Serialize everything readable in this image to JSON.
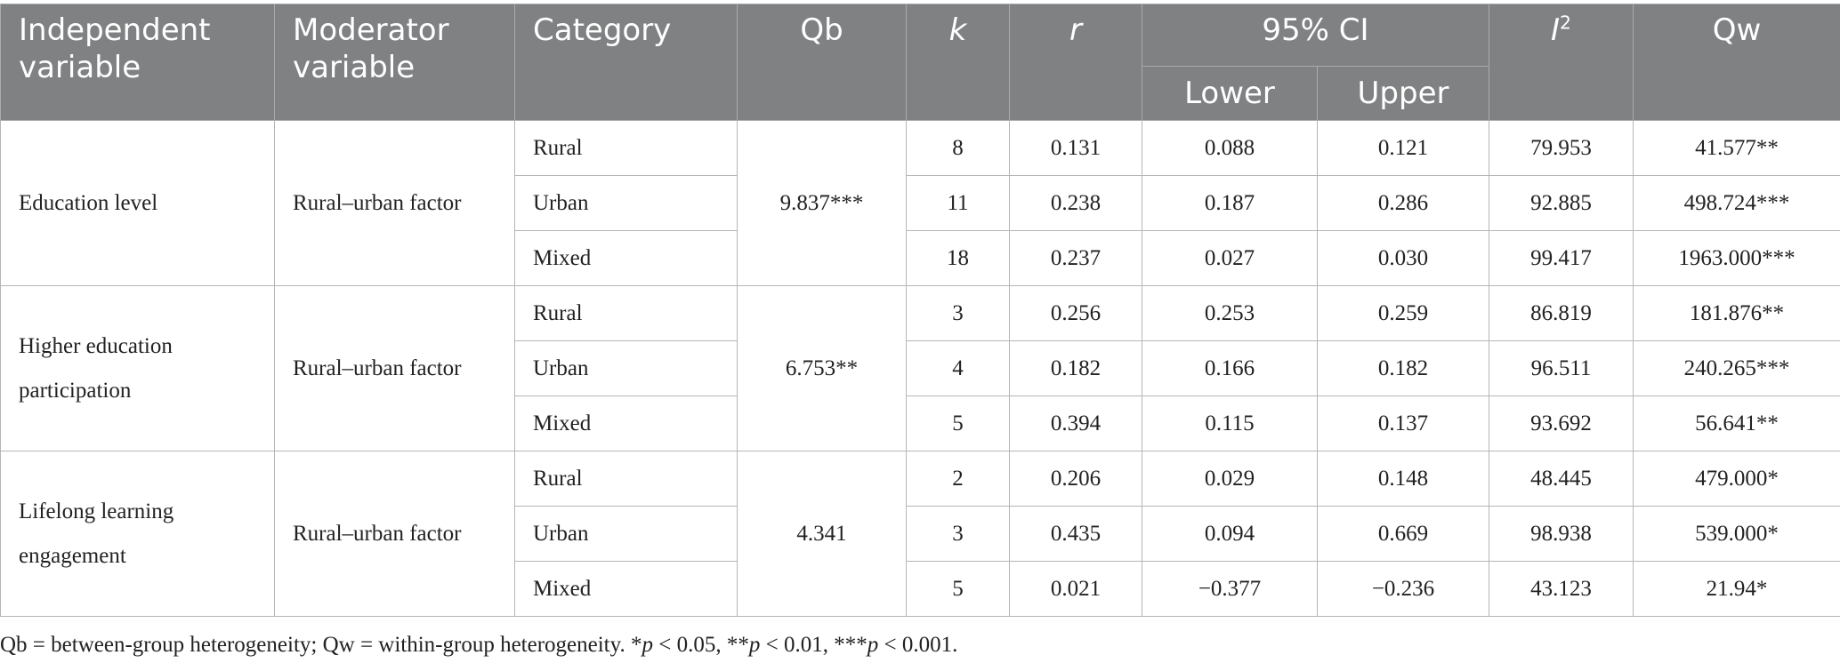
{
  "headers": {
    "independent": "Independent variable",
    "moderator": "Moderator variable",
    "category": "Category",
    "qb": "Qb",
    "k": "k",
    "r": "r",
    "ci": "95% CI",
    "lower": "Lower",
    "upper": "Upper",
    "i2_base": "I",
    "i2_sup": "2",
    "qw": "Qw"
  },
  "groups": [
    {
      "independent": "Education level",
      "moderator": "Rural–urban factor",
      "qb": "9.837***",
      "rows": [
        {
          "category": "Rural",
          "k": "8",
          "r": "0.131",
          "lower": "0.088",
          "upper": "0.121",
          "i2": "79.953",
          "qw": "41.577**"
        },
        {
          "category": "Urban",
          "k": "11",
          "r": "0.238",
          "lower": "0.187",
          "upper": "0.286",
          "i2": "92.885",
          "qw": "498.724***"
        },
        {
          "category": "Mixed",
          "k": "18",
          "r": "0.237",
          "lower": "0.027",
          "upper": "0.030",
          "i2": "99.417",
          "qw": "1963.000***"
        }
      ]
    },
    {
      "independent": "Higher education participation",
      "moderator": "Rural–urban factor",
      "qb": "6.753**",
      "rows": [
        {
          "category": "Rural",
          "k": "3",
          "r": "0.256",
          "lower": "0.253",
          "upper": "0.259",
          "i2": "86.819",
          "qw": "181.876**"
        },
        {
          "category": "Urban",
          "k": "4",
          "r": "0.182",
          "lower": "0.166",
          "upper": "0.182",
          "i2": "96.511",
          "qw": "240.265***"
        },
        {
          "category": "Mixed",
          "k": "5",
          "r": "0.394",
          "lower": "0.115",
          "upper": "0.137",
          "i2": "93.692",
          "qw": "56.641**"
        }
      ]
    },
    {
      "independent": "Lifelong learning engagement",
      "moderator": "Rural–urban factor",
      "qb": "4.341",
      "rows": [
        {
          "category": "Rural",
          "k": "2",
          "r": "0.206",
          "lower": "0.029",
          "upper": "0.148",
          "i2": "48.445",
          "qw": "479.000*"
        },
        {
          "category": "Urban",
          "k": "3",
          "r": "0.435",
          "lower": "0.094",
          "upper": "0.669",
          "i2": "98.938",
          "qw": "539.000*"
        },
        {
          "category": "Mixed",
          "k": "5",
          "r": "0.021",
          "lower": "−0.377",
          "upper": "−0.236",
          "i2": "43.123",
          "qw": "21.94*"
        }
      ]
    }
  ],
  "note": {
    "lead": "Qb = between-group heterogeneity; Qw = within-group heterogeneity. *",
    "p1": "p",
    "t1": " < 0.05, **",
    "p2": "p",
    "t2": " < 0.01, ***",
    "p3": "p",
    "t3": " < 0.001."
  }
}
